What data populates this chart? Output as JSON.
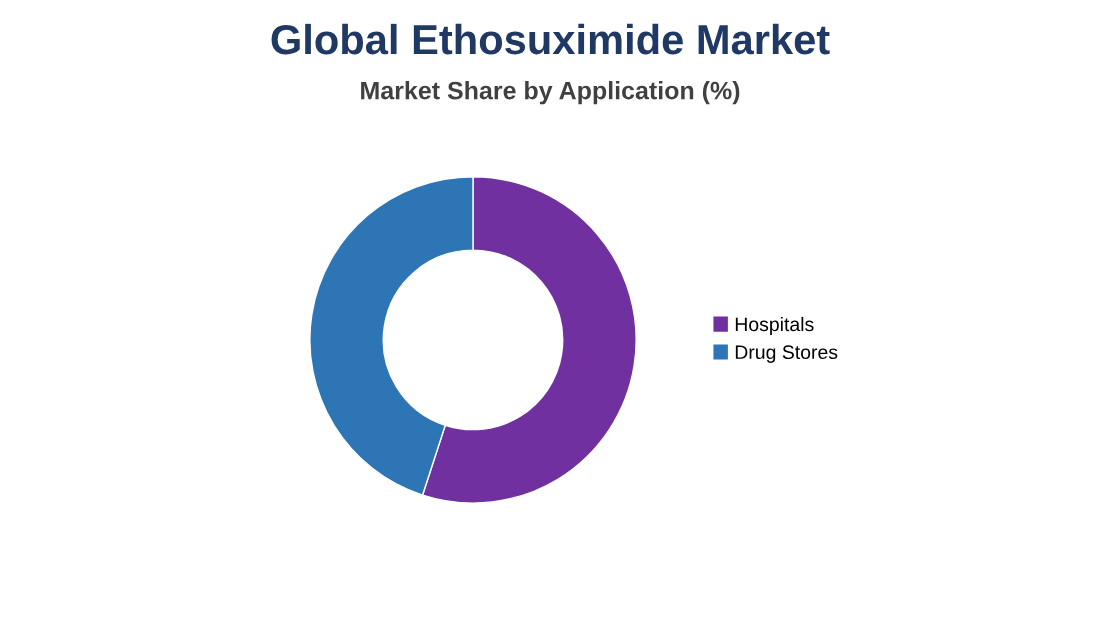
{
  "chart_data": {
    "type": "donut",
    "title": "Global Ethosuximide Market",
    "subtitle": "Market Share by Application (%)",
    "categories": [
      "Hospitals",
      "Drug Stores"
    ],
    "values": [
      55,
      45
    ],
    "colors": [
      "#7030a0",
      "#2e75b6"
    ],
    "legend": "right"
  }
}
